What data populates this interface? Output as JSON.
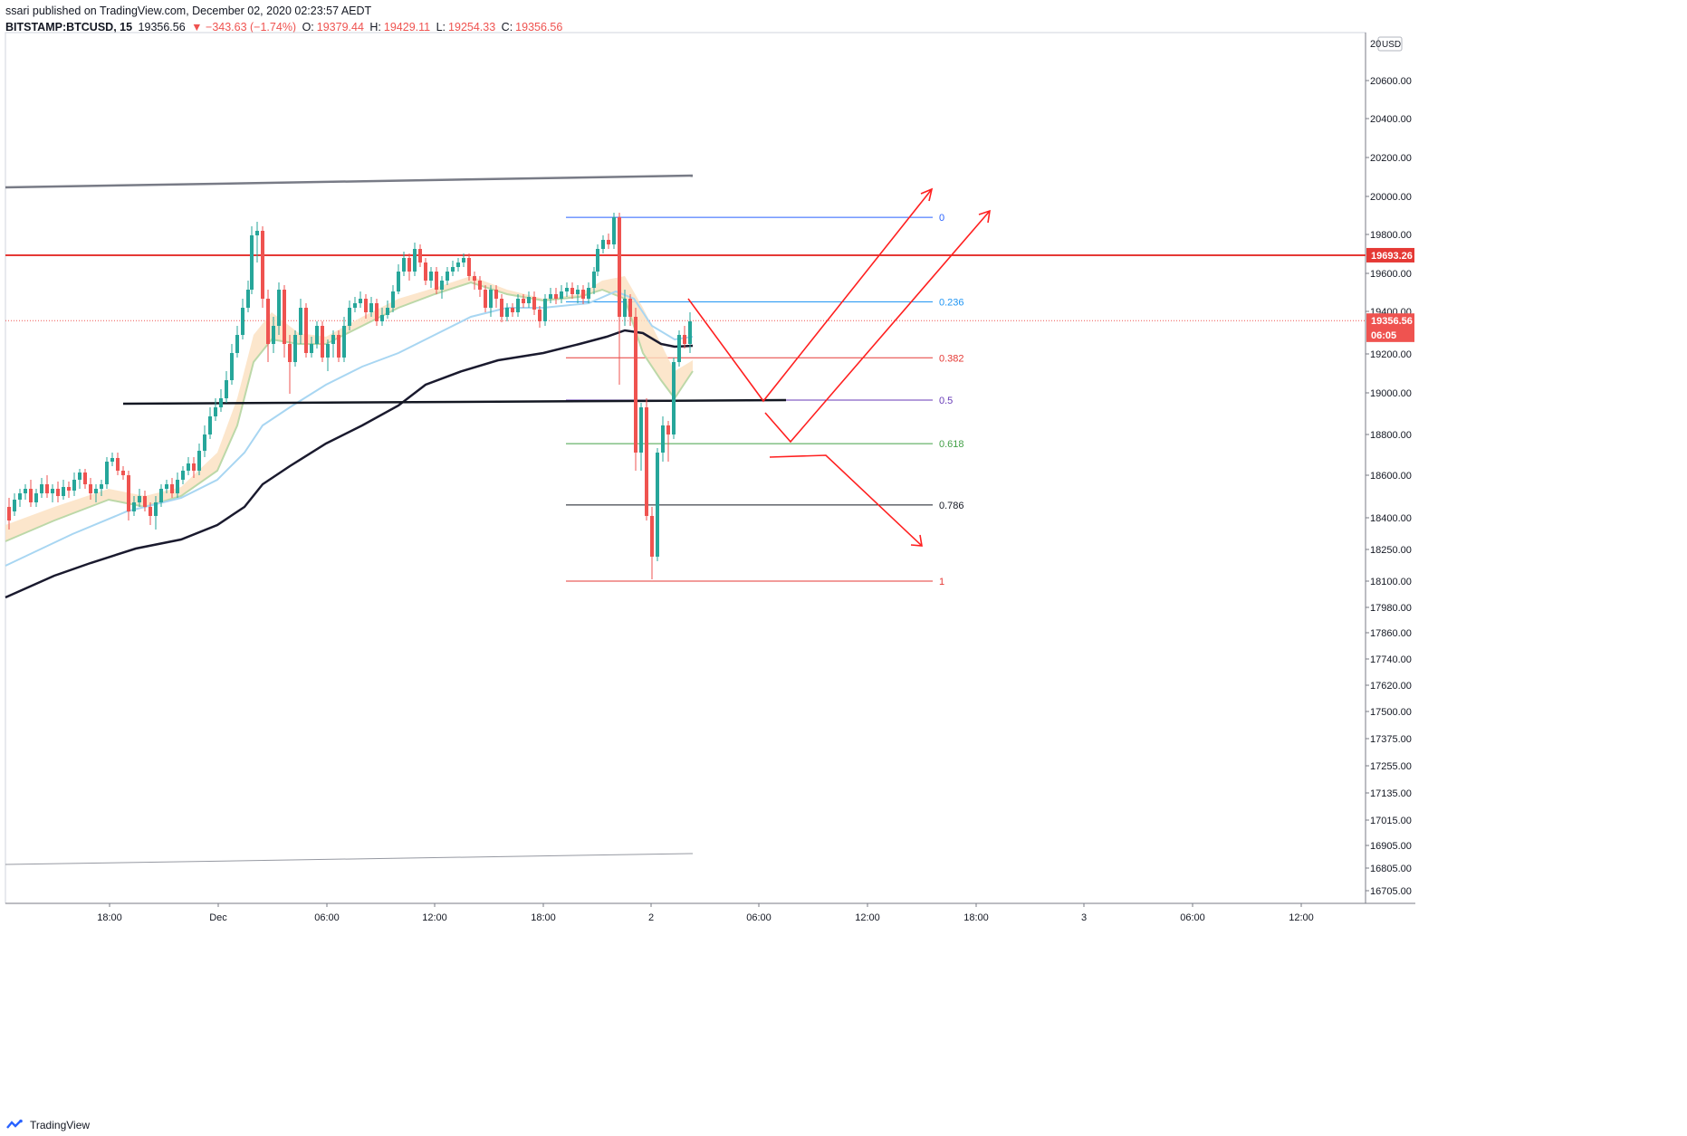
{
  "header": {
    "published": "ssari published on TradingView.com, December 02, 2020 02:23:57 AEDT",
    "symbol": "BITSTAMP:BTCUSD, 15",
    "last": "19356.56",
    "change": "▼ −343.63 (−1.74%)",
    "open_label": "O:",
    "open": "19379.44",
    "high_label": "H:",
    "high": "19429.11",
    "low_label": "L:",
    "low": "19254.33",
    "close_label": "C:",
    "close": "19356.56"
  },
  "footer": {
    "brand": "TradingView"
  },
  "colors": {
    "bull": "#26a69a",
    "bear": "#ef5350",
    "ema_fast": "#bcd8a8",
    "ema_cloud": "#fbe0bf",
    "ema_mid": "#a8d6f2",
    "ema_slow": "#1a1a2e",
    "resistance": "#e53935",
    "annotation": "#ff2020"
  },
  "chart_data": {
    "type": "candlestick",
    "currency": "USD",
    "y_ticks": [
      "20600.00",
      "20400.00",
      "20200.00",
      "20000.00",
      "19800.00",
      "19600.00",
      "19400.00",
      "19200.00",
      "19000.00",
      "18800.00",
      "18600.00",
      "18400.00",
      "18250.00",
      "18100.00",
      "17980.00",
      "17860.00",
      "17740.00",
      "17620.00",
      "17500.00",
      "17375.00",
      "17255.00",
      "17135.00",
      "17015.00",
      "16905.00",
      "16805.00",
      "16705.00"
    ],
    "y_tick_top": "20800.00",
    "x_ticks": [
      "18:00",
      "Dec",
      "06:00",
      "12:00",
      "18:00",
      "2",
      "06:00",
      "12:00",
      "18:00",
      "3",
      "06:00",
      "12:00"
    ],
    "price_tags": [
      {
        "label": "19693.26",
        "value": 19693.26,
        "color": "#e53935"
      },
      {
        "label": "19356.56",
        "value": 19356.56,
        "color": "#ef5350"
      },
      {
        "label": "06:05",
        "value": 19290,
        "color": "#ef5350"
      }
    ],
    "horizontal_levels": [
      {
        "name": "resistance",
        "value": 19693.26,
        "color": "#e53935"
      },
      {
        "name": "last-price",
        "value": 19356.56,
        "color": "#ef5350",
        "dotted": true
      }
    ],
    "fibonacci": [
      {
        "label": "0",
        "value": 19890,
        "color": "#2962ff"
      },
      {
        "label": "0.236",
        "value": 19450,
        "color": "#2196f3"
      },
      {
        "label": "0.382",
        "value": 19180,
        "color": "#e53935"
      },
      {
        "label": "0.5",
        "value": 18965,
        "color": "#673ab7"
      },
      {
        "label": "0.618",
        "value": 18755,
        "color": "#43a047"
      },
      {
        "label": "0.786",
        "value": 18460,
        "color": "#131722"
      },
      {
        "label": "1",
        "value": 18100,
        "color": "#e53935"
      }
    ]
  }
}
